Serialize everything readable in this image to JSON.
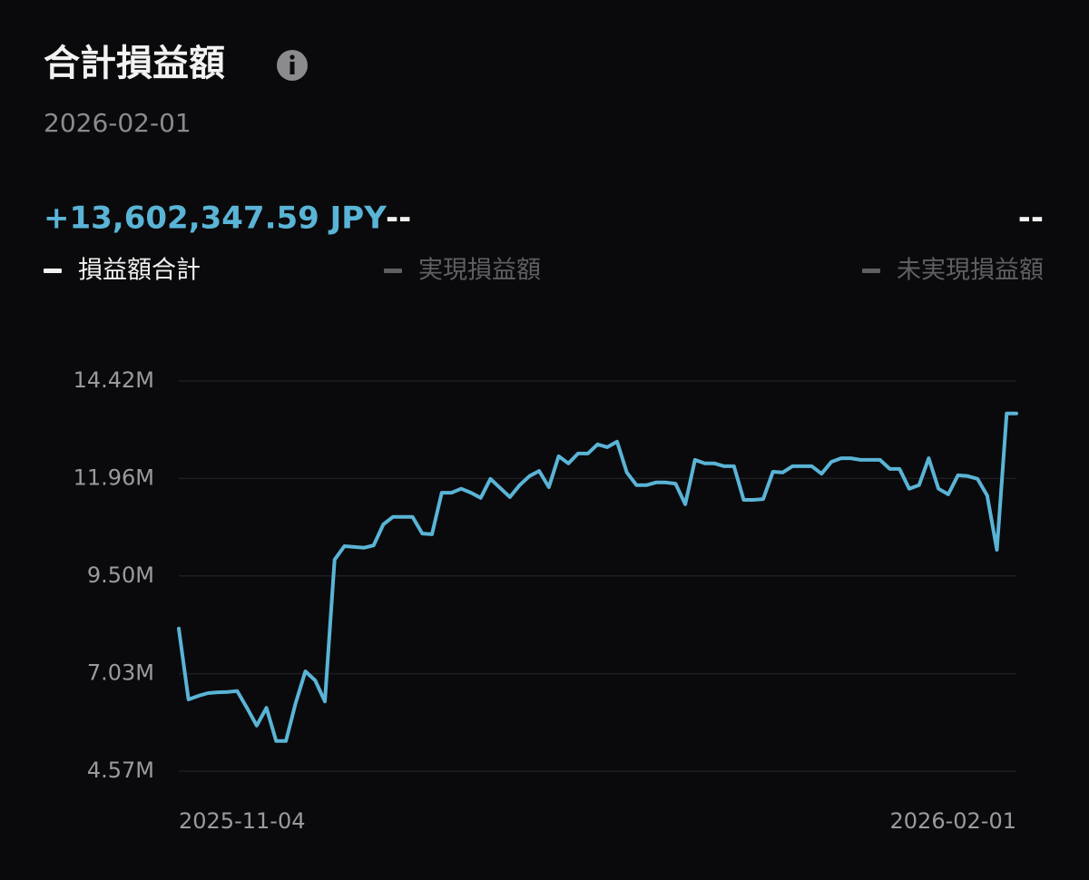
{
  "header": {
    "title": "合計損益額",
    "date": "2026-02-01"
  },
  "summary": [
    {
      "value": "+13,602,347.59 JPY"
    },
    {
      "value": "--",
      "label": "実現損益額"
    },
    {
      "value": "--",
      "label": "未実現損益額"
    }
  ],
  "chart_data": {
    "type": "line",
    "categories": [
      "2025-11-04",
      null,
      null,
      null,
      null,
      null,
      null,
      null,
      null,
      null,
      null,
      null,
      null,
      null,
      null,
      null,
      null,
      null,
      null,
      null,
      null,
      null,
      null,
      null,
      null,
      null,
      null,
      null,
      null,
      null,
      null,
      null,
      null,
      null,
      null,
      null,
      null,
      null,
      null,
      null,
      null,
      null,
      null,
      null,
      null,
      null,
      null,
      null,
      null,
      null,
      null,
      null,
      null,
      null,
      null,
      null,
      null,
      null,
      null,
      null,
      null,
      null,
      null,
      null,
      null,
      null,
      null,
      null,
      null,
      null,
      null,
      null,
      null,
      null,
      null,
      null,
      null,
      null,
      null,
      null,
      null,
      null,
      null,
      null,
      null,
      null,
      "2026-02-01"
    ],
    "series": [
      {
        "name": "損益額合計",
        "color": "#5ab4d6",
        "values": [
          8.17,
          6.38,
          6.47,
          6.54,
          6.56,
          6.57,
          6.59,
          6.17,
          5.72,
          6.17,
          5.33,
          5.33,
          6.29,
          7.09,
          6.86,
          6.33,
          9.91,
          10.25,
          10.23,
          10.21,
          10.27,
          10.8,
          10.99,
          10.99,
          10.99,
          10.57,
          10.55,
          11.6,
          11.6,
          11.7,
          11.6,
          11.47,
          11.95,
          11.72,
          11.49,
          11.79,
          12.02,
          12.15,
          11.74,
          12.52,
          12.34,
          12.59,
          12.59,
          12.82,
          12.75,
          12.89,
          12.11,
          11.79,
          11.79,
          11.86,
          11.86,
          11.83,
          11.31,
          12.43,
          12.34,
          12.34,
          12.27,
          12.27,
          11.42,
          11.42,
          11.44,
          12.13,
          12.11,
          12.27,
          12.27,
          12.27,
          12.08,
          12.38,
          12.47,
          12.47,
          12.43,
          12.43,
          12.43,
          12.2,
          12.2,
          11.7,
          11.79,
          12.47,
          11.7,
          11.56,
          12.04,
          12.02,
          11.95,
          11.53,
          10.16,
          13.6,
          13.6
        ]
      }
    ],
    "ylim": [
      4.57,
      14.42
    ],
    "yticks": [
      {
        "value": 14.42,
        "label": "14.42M"
      },
      {
        "value": 11.96,
        "label": "11.96M"
      },
      {
        "value": 9.5,
        "label": "9.50M"
      },
      {
        "value": 7.03,
        "label": "7.03M"
      },
      {
        "value": 4.57,
        "label": "4.57M"
      }
    ],
    "grid": true,
    "muted_color": "#5f5f64"
  }
}
